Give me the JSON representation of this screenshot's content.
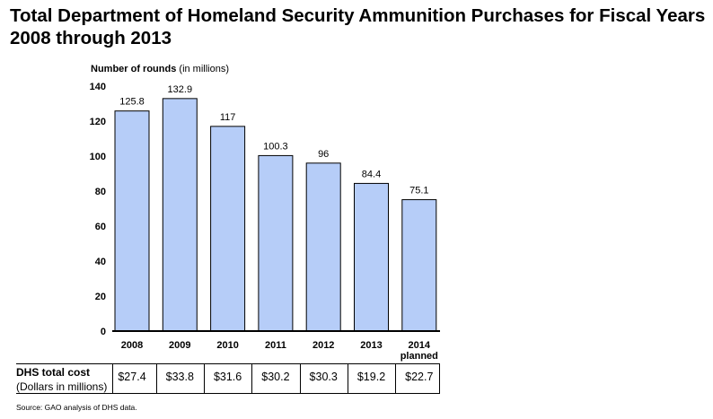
{
  "title": "Total Department of Homeland Security Ammunition Purchases for Fiscal Years 2008 through 2013",
  "source": "Source: GAO analysis of DHS data.",
  "colors": {
    "bar_fill": "#b6cdf8",
    "bar_stroke": "#000000"
  },
  "chart_data": {
    "type": "bar",
    "title": "Total Department of Homeland Security Ammunition Purchases for Fiscal Years 2008 through 2013",
    "ylabel": "Number of rounds",
    "ylabel_unit": "(in millions)",
    "xlabel": "",
    "categories": [
      "2008",
      "2009",
      "2010",
      "2011",
      "2012",
      "2013",
      "2014"
    ],
    "category_sublabels": [
      "",
      "",
      "",
      "",
      "",
      "",
      "planned"
    ],
    "values": [
      125.8,
      132.9,
      117,
      100.3,
      96,
      84.4,
      75.1
    ],
    "value_labels": [
      "125.8",
      "132.9",
      "117",
      "100.3",
      "96",
      "84.4",
      "75.1"
    ],
    "ylim": [
      0,
      140
    ],
    "yticks": [
      0,
      20,
      40,
      60,
      80,
      100,
      120,
      140
    ],
    "grid": false,
    "legend": "none"
  },
  "cost_table": {
    "label_line1": "DHS total cost",
    "label_line2": "(Dollars in millions)",
    "values": [
      "$27.4",
      "$33.8",
      "$31.6",
      "$30.2",
      "$30.3",
      "$19.2",
      "$22.7"
    ]
  }
}
